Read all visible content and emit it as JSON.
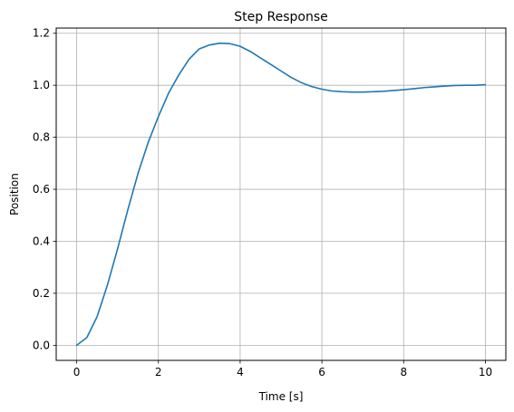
{
  "chart_data": {
    "type": "line",
    "title": "Step Response",
    "xlabel": "Time [s]",
    "ylabel": "Position",
    "xlim": [
      -0.5,
      10.5
    ],
    "ylim": [
      -0.058,
      1.22
    ],
    "xticks": [
      0,
      2,
      4,
      6,
      8,
      10
    ],
    "xtick_labels": [
      "0",
      "2",
      "4",
      "6",
      "8",
      "10"
    ],
    "yticks": [
      0.0,
      0.2,
      0.4,
      0.6,
      0.8,
      1.0,
      1.2
    ],
    "ytick_labels": [
      "0.0",
      "0.2",
      "0.4",
      "0.6",
      "0.8",
      "1.0",
      "1.2"
    ],
    "grid": true,
    "series": [
      {
        "color": "#1f77b4",
        "x": [
          0,
          0.25,
          0.5,
          0.75,
          1.0,
          1.25,
          1.5,
          1.75,
          2.0,
          2.25,
          2.5,
          2.75,
          3.0,
          3.25,
          3.5,
          3.75,
          4.0,
          4.25,
          4.5,
          4.75,
          5.0,
          5.25,
          5.5,
          5.75,
          6.0,
          6.25,
          6.5,
          6.75,
          7.0,
          7.25,
          7.5,
          7.75,
          8.0,
          8.25,
          8.5,
          8.75,
          9.0,
          9.25,
          9.5,
          9.75,
          10.0
        ],
        "y": [
          0.0,
          0.03,
          0.11,
          0.23,
          0.37,
          0.52,
          0.66,
          0.78,
          0.88,
          0.97,
          1.04,
          1.1,
          1.14,
          1.155,
          1.162,
          1.16,
          1.15,
          1.13,
          1.105,
          1.08,
          1.055,
          1.03,
          1.01,
          0.995,
          0.985,
          0.978,
          0.975,
          0.974,
          0.974,
          0.975,
          0.977,
          0.98,
          0.983,
          0.987,
          0.991,
          0.994,
          0.997,
          0.999,
          1.0,
          1.0,
          1.002
        ]
      }
    ]
  }
}
